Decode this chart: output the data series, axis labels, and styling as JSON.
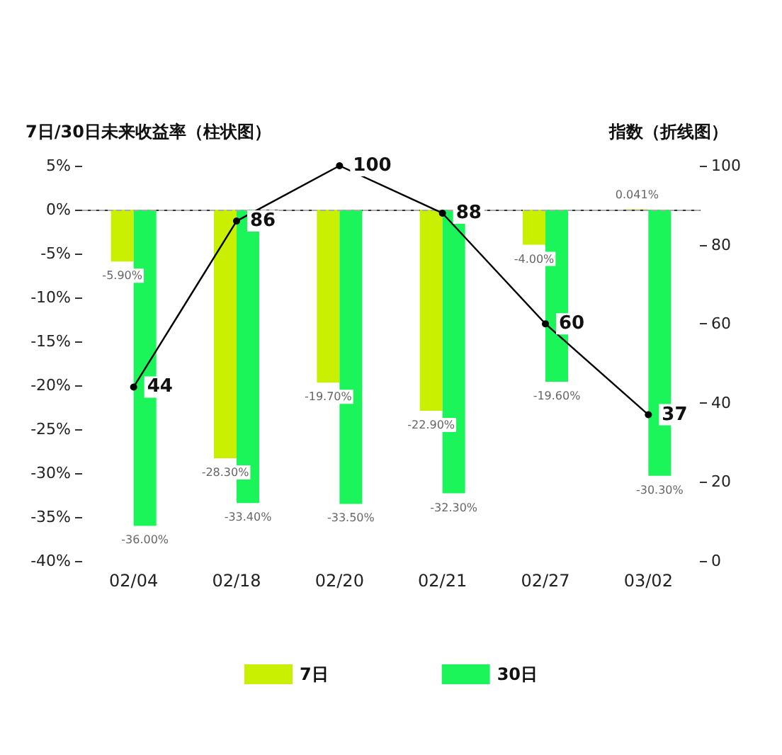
{
  "chart_data": {
    "type": "bar",
    "ylabel": "7日/30日未来收益率（柱状图）",
    "y2label": "指数（折线图）",
    "categories": [
      "02/04",
      "02/18",
      "02/20",
      "02/21",
      "02/27",
      "03/02"
    ],
    "series": [
      {
        "name": "7日",
        "color": "#c8f000",
        "values": [
          -5.9,
          -28.3,
          -19.7,
          -22.9,
          -4.0,
          0.041
        ],
        "value_labels": [
          "-5.90%",
          "-28.30%",
          "-19.70%",
          "-22.90%",
          "-4.00%",
          "0.041%"
        ]
      },
      {
        "name": "30日",
        "color": "#1cf55a",
        "values": [
          -36.0,
          -33.4,
          -33.5,
          -32.3,
          -19.6,
          -30.3
        ],
        "value_labels": [
          "-36.00%",
          "-33.40%",
          "-33.50%",
          "-32.30%",
          "-19.60%",
          "-30.30%"
        ]
      },
      {
        "type": "line",
        "axis": "y2",
        "color": "#000000",
        "marker": "circle",
        "values": [
          44,
          86,
          100,
          88,
          60,
          37
        ],
        "value_labels": [
          "44",
          "86",
          "100",
          "88",
          "60",
          "37"
        ]
      }
    ],
    "ylim": [
      -40,
      5
    ],
    "yticks": [
      {
        "value": 5,
        "label": "5%"
      },
      {
        "value": 0,
        "label": "0%"
      },
      {
        "value": -5,
        "label": "-5%"
      },
      {
        "value": -10,
        "label": "-10%"
      },
      {
        "value": -15,
        "label": "-15%"
      },
      {
        "value": -20,
        "label": "-20%"
      },
      {
        "value": -25,
        "label": "-25%"
      },
      {
        "value": -30,
        "label": "-30%"
      },
      {
        "value": -35,
        "label": "-35%"
      },
      {
        "value": -40,
        "label": "-40%"
      }
    ],
    "y2lim": [
      0,
      100
    ],
    "y2ticks": [
      0,
      20,
      40,
      60,
      80,
      100
    ],
    "ref_lines": [
      {
        "axis": "y",
        "value": 0,
        "color": "#aaaaaa",
        "line_style": "dashed"
      }
    ],
    "legend": "bottom",
    "grid": false
  }
}
